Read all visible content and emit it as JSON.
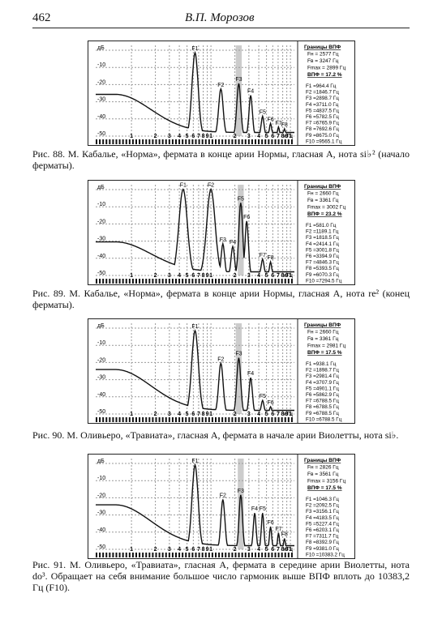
{
  "header": {
    "page_number": "462",
    "author": "В.П. Морозов"
  },
  "axis": {
    "y_labels": [
      "дБ",
      "-10",
      "-20",
      "-30",
      "-40",
      "-50"
    ],
    "x_labels": [
      "1",
      "2",
      "3",
      "4",
      "5",
      "6",
      "7",
      "8",
      "9",
      "1",
      "2",
      "3",
      "4",
      "5",
      "6",
      "7",
      "8",
      "9",
      "1"
    ],
    "x_unit": "кГц"
  },
  "figures": [
    {
      "peak_labels": [
        "F1",
        "F2",
        "F3",
        "F4",
        "F5",
        "F6",
        "F7",
        "F8"
      ],
      "panel": {
        "title": "Границы ВПФ",
        "fn": "Fн = 2577 Гц",
        "fv": "Fв = 3247 Гц",
        "fmax": "Fmax = 2899 Гц",
        "vpf": "ВПФ = 17.2 %"
      },
      "formants": [
        "F1 =964.4 Гц",
        "F2 =1846.7 Гц",
        "F3 =2898.7 Гц",
        "F4 =3711.0 Гц",
        "F5 =4837.5 Гц",
        "F6 =5782.5 Гц",
        "F7 =6765.9 Гц",
        "F8 =7692.6 Гц",
        "F9 =8675.0 Гц",
        "F10 =9565.1 Гц"
      ],
      "caption": "Рис. 88. М. Кабалье, «Норма», фермата в конце арии Нормы, гласная А, нота si♭² (начало ферматы)."
    },
    {
      "peak_labels": [
        "F1",
        "F2",
        "F3",
        "F4",
        "F5",
        "F6",
        "F7",
        "F8"
      ],
      "panel": {
        "title": "Границы ВПФ",
        "fn": "Fн = 2660 Гц",
        "fv": "Fв = 3361 Гц",
        "fmax": "Fmax = 3002 Гц",
        "vpf": "ВПФ = 23.2 %"
      },
      "formants": [
        "F1 =581.0 Гц",
        "F2 =1189.1 Гц",
        "F3 =1818.5 Гц",
        "F4 =2414.1 Гц",
        "F5 =3001.8 Гц",
        "F6 =3394.9 Гц",
        "F7 =4846.3 Гц",
        "F8 =5393.5 Гц",
        "F9 =6070.3 Гц",
        "F10 =7294.5 Гц"
      ],
      "caption": "Рис. 89. М. Кабалье, «Норма», фермата в конце арии Нормы, гласная А, нота re² (конец ферматы)."
    },
    {
      "peak_labels": [
        "F1",
        "F2",
        "F3",
        "F4",
        "F5",
        "F6"
      ],
      "panel": {
        "title": "Границы ВПФ",
        "fn": "Fн = 2660 Гц",
        "fv": "Fв = 3361 Гц",
        "fmax": "Fmax = 2981 Гц",
        "vpf": "ВПФ = 17.5 %"
      },
      "formants": [
        "F1 =938.1 Гц",
        "F2 =1898.7 Гц",
        "F3 =2981.4 Гц",
        "F4 =3707.9 Гц",
        "F5 =4901.1 Гц",
        "F6 =5862.9 Гц",
        "F7 =6788.5 Гц",
        "F8 =6788.5 Гц",
        "F9 =6788.5 Гц",
        "F10 =6788.5 Гц"
      ],
      "caption": "Рис. 90. М. Оливьеро, «Травиата», гласная А, фермата в начале арии Виолетты, нота si♭."
    },
    {
      "peak_labels": [
        "F1",
        "F2",
        "F3",
        "F4",
        "F5",
        "F6",
        "F7",
        "F8"
      ],
      "panel": {
        "title": "Границы ВПФ",
        "fn": "Fн = 2826 Гц",
        "fv": "Fв = 3561 Гц",
        "fmax": "Fmax = 3156 Гц",
        "vpf": "ВПФ = 17.5 %"
      },
      "formants": [
        "F1 =1046.3 Гц",
        "F2 =2092.5 Гц",
        "F3 =3156.1 Гц",
        "F4 =4183.5 Гц",
        "F5 =5227.4 Гц",
        "F6 =6203.1 Гц",
        "F7 =7311.7 Гц",
        "F8 =8392.9 Гц",
        "F9 =9381.0 Гц",
        "F10 =10383.2 Гц"
      ],
      "caption": "Рис. 91. М. Оливьеро, «Травиата», гласная А, фермата в середине арии Виолетты, нота do³. Обращает на себя внимание большое число гармоник выше ВПФ вплоть до 10383,2 Гц (F10)."
    }
  ]
}
